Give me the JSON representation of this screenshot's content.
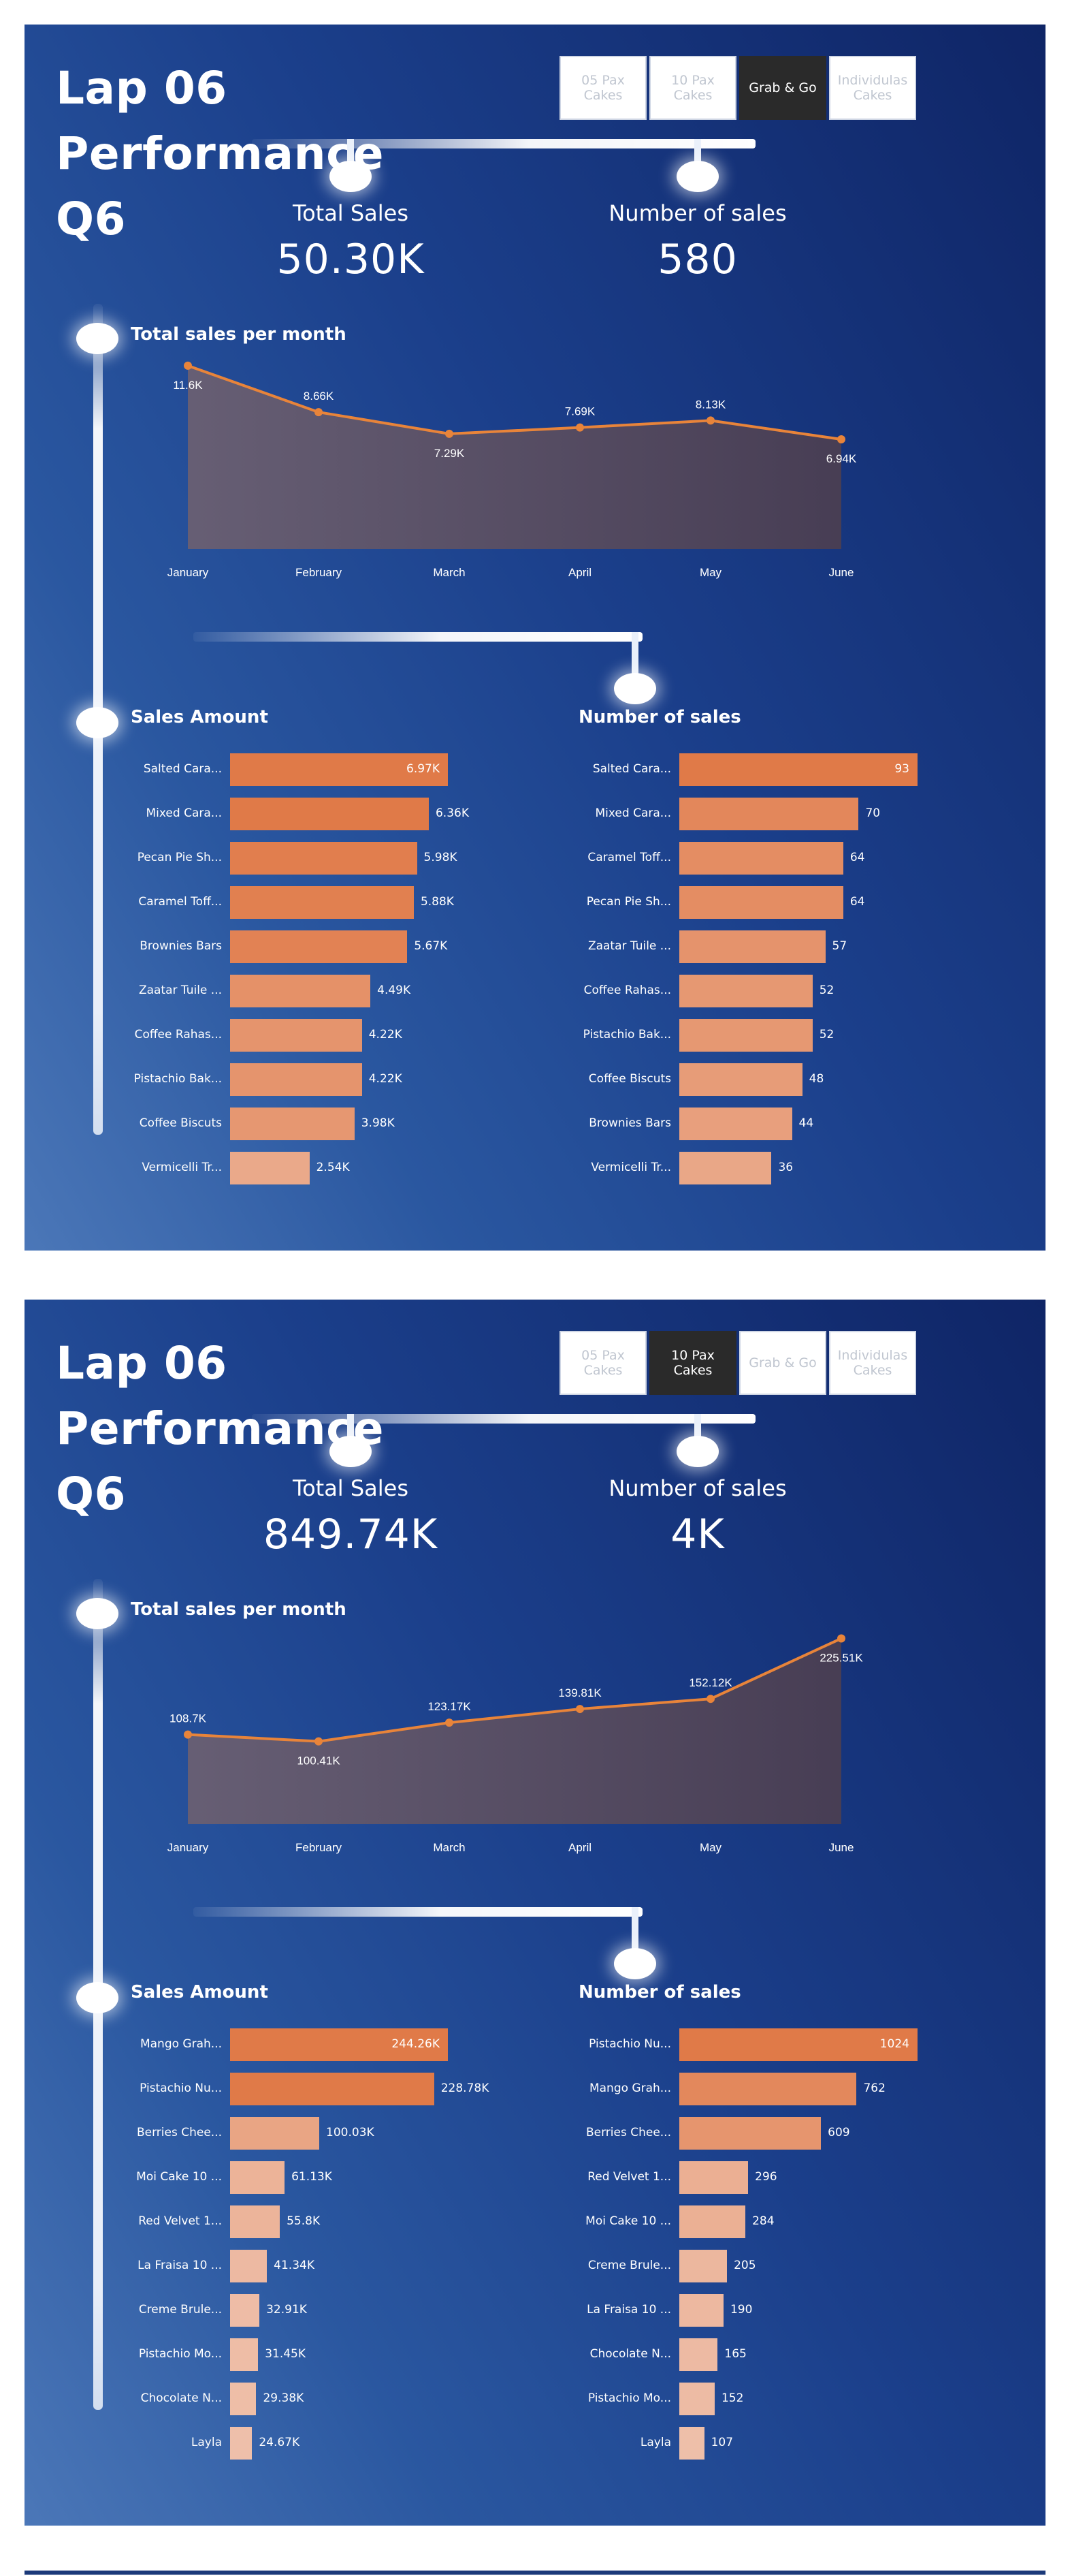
{
  "colors": {
    "accent_orange": "#e07a48",
    "line_orange": "#e8843a",
    "area_fill": "#5a4f5f",
    "slicer_active": "#2a2a2a"
  },
  "dashboards": [
    {
      "title_line1": "Lap 06 Performance",
      "title_line2": "Q6",
      "slicer": [
        {
          "label": "05 Pax Cakes",
          "active": false
        },
        {
          "label": "10 Pax Cakes",
          "active": false
        },
        {
          "label": "Grab & Go",
          "active": true
        },
        {
          "label": "Individulas Cakes",
          "active": false
        }
      ],
      "kpis": [
        {
          "label": "Total Sales",
          "value": "50.30K"
        },
        {
          "label": "Number of sales",
          "value": "580"
        }
      ],
      "line_title": "Total sales per month",
      "line_chart": {
        "type": "area",
        "categories": [
          "January",
          "February",
          "March",
          "April",
          "May",
          "June"
        ],
        "values": [
          11.6,
          8.66,
          7.29,
          7.69,
          8.13,
          6.94
        ],
        "labels": [
          "11.6K",
          "8.66K",
          "7.29K",
          "7.69K",
          "8.13K",
          "6.94K"
        ],
        "label_above": [
          false,
          true,
          false,
          true,
          true,
          false
        ],
        "ylim": [
          0,
          12.5
        ]
      },
      "bars_left": {
        "title": "Sales Amount",
        "categories": [
          "Salted Cara...",
          "Mixed Cara...",
          "Pecan Pie Sh...",
          "Caramel Toff...",
          "Brownies Bars",
          "Zaatar Tuile ...",
          "Coffee Rahas...",
          "Pistachio Bak...",
          "Coffee Biscuts",
          "Vermicelli Tr..."
        ],
        "values": [
          6.97,
          6.36,
          5.98,
          5.88,
          5.67,
          4.49,
          4.22,
          4.22,
          3.98,
          2.54
        ],
        "labels": [
          "6.97K",
          "6.36K",
          "5.98K",
          "5.88K",
          "5.67K",
          "4.49K",
          "4.22K",
          "4.22K",
          "3.98K",
          "2.54K"
        ],
        "max": 6.97
      },
      "bars_right": {
        "title": "Number of sales",
        "categories": [
          "Salted Cara...",
          "Mixed Cara...",
          "Caramel Toff...",
          "Pecan Pie Sh...",
          "Zaatar Tuile ...",
          "Coffee Rahas...",
          "Pistachio Bak...",
          "Coffee Biscuts",
          "Brownies Bars",
          "Vermicelli Tr..."
        ],
        "values": [
          93,
          70,
          64,
          64,
          57,
          52,
          52,
          48,
          44,
          36
        ],
        "labels": [
          "93",
          "70",
          "64",
          "64",
          "57",
          "52",
          "52",
          "48",
          "44",
          "36"
        ],
        "max": 93
      }
    },
    {
      "title_line1": "Lap 06 Performance",
      "title_line2": "Q6",
      "slicer": [
        {
          "label": "05 Pax Cakes",
          "active": false
        },
        {
          "label": "10 Pax Cakes",
          "active": true
        },
        {
          "label": "Grab & Go",
          "active": false
        },
        {
          "label": "Individulas Cakes",
          "active": false
        }
      ],
      "kpis": [
        {
          "label": "Total Sales",
          "value": "849.74K"
        },
        {
          "label": "Number of sales",
          "value": "4K"
        }
      ],
      "line_title": "Total sales per month",
      "line_chart": {
        "type": "area",
        "categories": [
          "January",
          "February",
          "March",
          "April",
          "May",
          "June"
        ],
        "values": [
          108.7,
          100.41,
          123.17,
          139.81,
          152.12,
          225.51
        ],
        "labels": [
          "108.7K",
          "100.41K",
          "123.17K",
          "139.81K",
          "152.12K",
          "225.51K"
        ],
        "label_above": [
          true,
          false,
          true,
          true,
          true,
          false
        ],
        "ylim": [
          0,
          240
        ]
      },
      "bars_left": {
        "title": "Sales Amount",
        "categories": [
          "Mango Grah...",
          "Pistachio Nu...",
          "Berries Chee...",
          "Moi Cake 10 ...",
          "Red Velvet 1...",
          "La Fraisa 10 ...",
          "Creme Brule...",
          "Pistachio Mo...",
          "Chocolate N...",
          "Layla"
        ],
        "values": [
          244.26,
          228.78,
          100.03,
          61.13,
          55.8,
          41.34,
          32.91,
          31.45,
          29.38,
          24.67
        ],
        "labels": [
          "244.26K",
          "228.78K",
          "100.03K",
          "61.13K",
          "55.8K",
          "41.34K",
          "32.91K",
          "31.45K",
          "29.38K",
          "24.67K"
        ],
        "max": 244.26
      },
      "bars_right": {
        "title": "Number of sales",
        "categories": [
          "Pistachio Nu...",
          "Mango Grah...",
          "Berries Chee...",
          "Red Velvet 1...",
          "Moi Cake 10 ...",
          "Creme Brule...",
          "La Fraisa 10 ...",
          "Chocolate N...",
          "Pistachio Mo...",
          "Layla"
        ],
        "values": [
          1024,
          762,
          609,
          296,
          284,
          205,
          190,
          165,
          152,
          107
        ],
        "labels": [
          "1024",
          "762",
          "609",
          "296",
          "284",
          "205",
          "190",
          "165",
          "152",
          "107"
        ],
        "max": 1024
      }
    }
  ]
}
